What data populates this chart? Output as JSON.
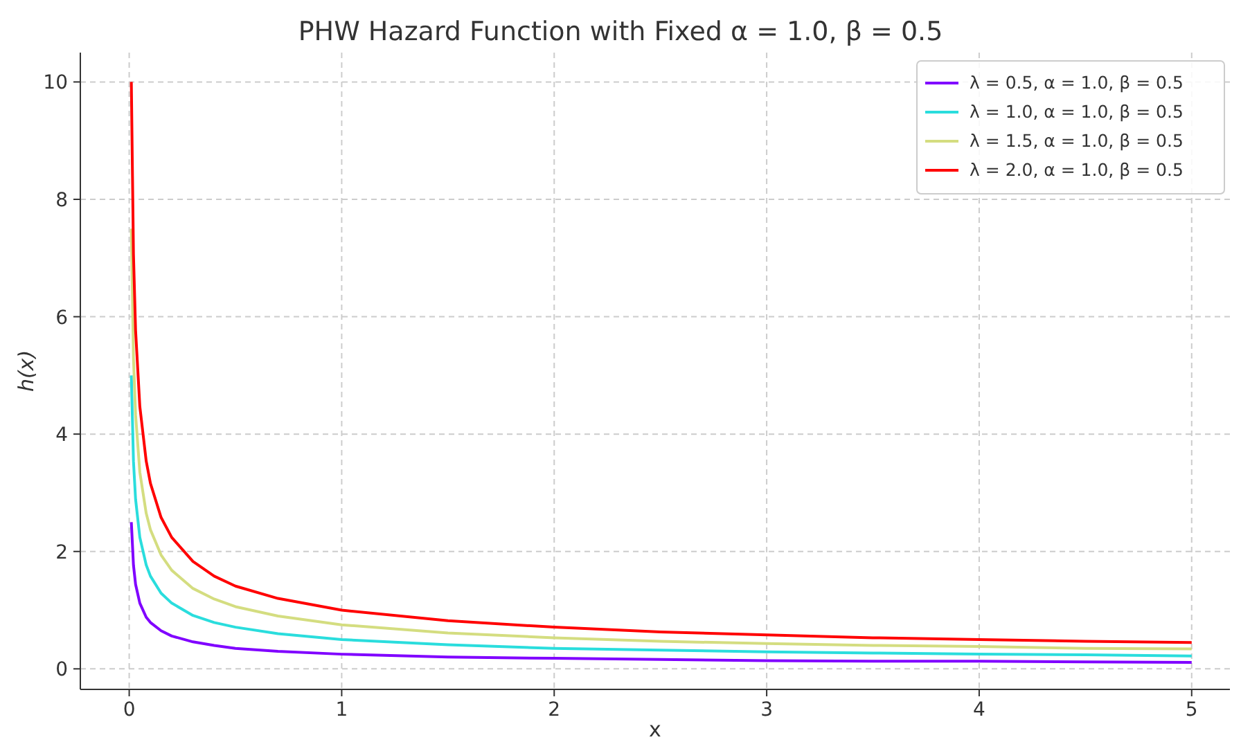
{
  "chart_data": {
    "type": "line",
    "title": "PHW Hazard Function with Fixed α = 1.0, β = 0.5",
    "xlabel": "x",
    "ylabel": "h(x)",
    "x": [
      0.01,
      0.02,
      0.03,
      0.05,
      0.08,
      0.1,
      0.15,
      0.2,
      0.3,
      0.4,
      0.5,
      0.7,
      1,
      1.5,
      2,
      2.5,
      3,
      3.5,
      4,
      4.5,
      5
    ],
    "series": [
      {
        "name": "λ = 0.5, α = 1.0, β = 0.5",
        "color": "#8000ff",
        "values": [
          2.5,
          1.77,
          1.44,
          1.12,
          0.88,
          0.79,
          0.65,
          0.56,
          0.46,
          0.4,
          0.35,
          0.3,
          0.25,
          0.2,
          0.18,
          0.16,
          0.14,
          0.13,
          0.13,
          0.12,
          0.11
        ]
      },
      {
        "name": "λ = 1.0, α = 1.0, β = 0.5",
        "color": "#2adddd",
        "values": [
          5,
          3.54,
          2.89,
          2.24,
          1.77,
          1.58,
          1.29,
          1.12,
          0.91,
          0.79,
          0.71,
          0.6,
          0.5,
          0.41,
          0.35,
          0.32,
          0.29,
          0.27,
          0.25,
          0.24,
          0.22
        ]
      },
      {
        "name": "λ = 1.5, α = 1.0, β = 0.5",
        "color": "#d4dd80",
        "values": [
          7.5,
          5.3,
          4.33,
          3.35,
          2.65,
          2.37,
          1.94,
          1.68,
          1.37,
          1.19,
          1.06,
          0.9,
          0.75,
          0.61,
          0.53,
          0.47,
          0.43,
          0.4,
          0.38,
          0.35,
          0.34
        ]
      },
      {
        "name": "λ = 2.0, α = 1.0, β = 0.5",
        "color": "#ff0000",
        "values": [
          10,
          7.07,
          5.77,
          4.47,
          3.54,
          3.16,
          2.58,
          2.24,
          1.83,
          1.58,
          1.41,
          1.2,
          1,
          0.82,
          0.71,
          0.63,
          0.58,
          0.53,
          0.5,
          0.47,
          0.45
        ]
      }
    ],
    "xlim": [
      -0.23,
      5.18
    ],
    "ylim": [
      -0.35,
      10.5
    ],
    "xticks": [
      0,
      1,
      2,
      3,
      4,
      5
    ],
    "yticks": [
      0,
      2,
      4,
      6,
      8,
      10
    ],
    "grid": true,
    "legend": "top right",
    "line_style": "solid"
  }
}
